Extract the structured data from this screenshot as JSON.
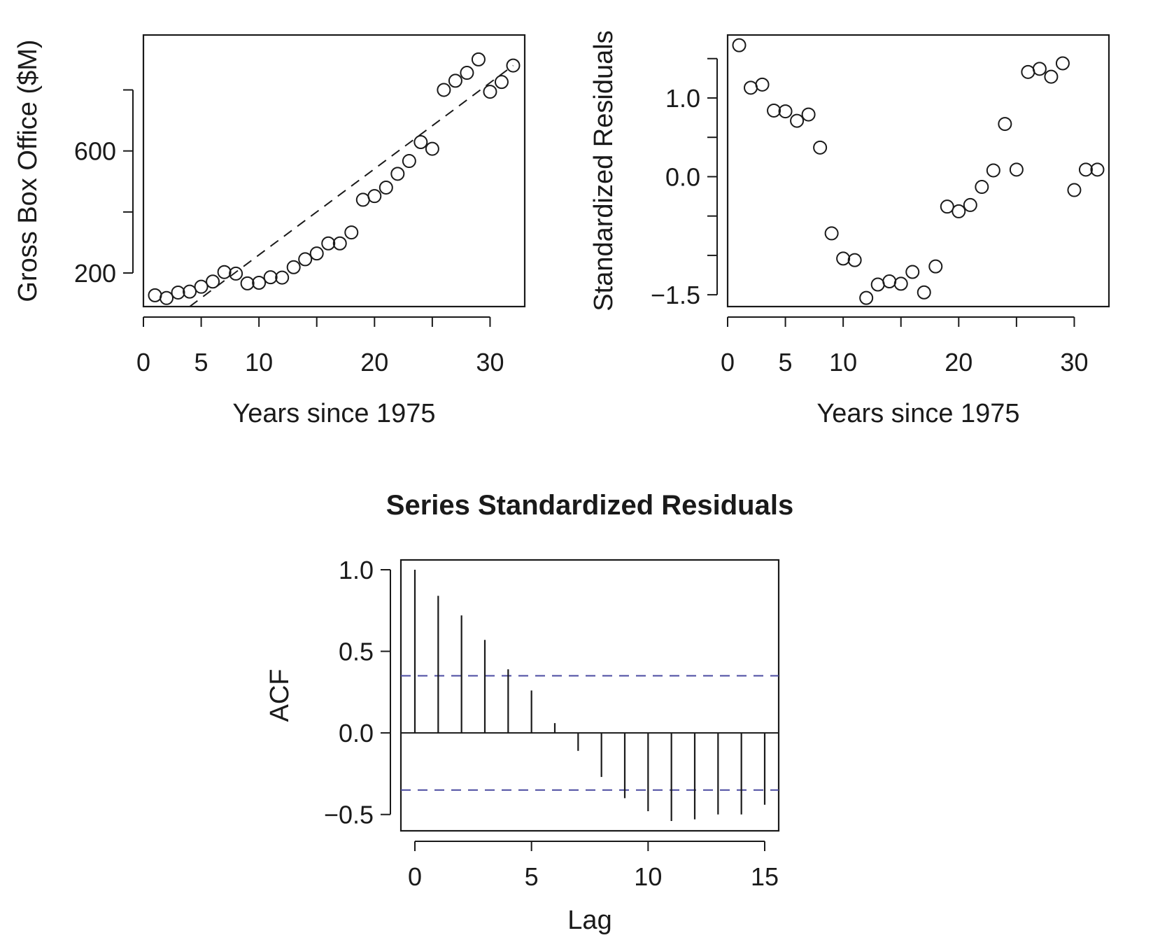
{
  "chart_data": [
    {
      "id": "boxoffice",
      "type": "scatter",
      "title": "",
      "xlabel": "Years since 1975",
      "ylabel": "Gross Box Office ($M)",
      "xlim": [
        0,
        33
      ],
      "ylim": [
        90,
        980
      ],
      "x_ticks": [
        0,
        5,
        10,
        15,
        20,
        25,
        30
      ],
      "x_tick_labels": [
        "0",
        "5",
        "10",
        "",
        "20",
        "",
        "30"
      ],
      "y_ticks": [
        200,
        400,
        600,
        800
      ],
      "y_tick_labels": [
        "200",
        "",
        "600",
        ""
      ],
      "grid": false,
      "x": [
        1,
        2,
        3,
        4,
        5,
        6,
        7,
        8,
        9,
        10,
        11,
        12,
        13,
        14,
        15,
        16,
        17,
        18,
        19,
        20,
        21,
        22,
        23,
        24,
        25,
        26,
        27,
        28,
        29,
        30,
        31,
        32
      ],
      "y": [
        127,
        118,
        136,
        139,
        155,
        172,
        203,
        198,
        166,
        168,
        186,
        185,
        219,
        245,
        264,
        297,
        297,
        333,
        440,
        452,
        480,
        525,
        567,
        629,
        607,
        800,
        830,
        856,
        900,
        794,
        826,
        880
      ],
      "fit_line": {
        "x": [
          4,
          32
        ],
        "y": [
          90,
          880
        ]
      }
    },
    {
      "id": "residuals",
      "type": "scatter",
      "title": "",
      "xlabel": "Years since 1975",
      "ylabel": "Standardized Residuals",
      "xlim": [
        0,
        33
      ],
      "ylim": [
        -1.65,
        1.8
      ],
      "x_ticks": [
        0,
        5,
        10,
        15,
        20,
        25,
        30
      ],
      "x_tick_labels": [
        "0",
        "5",
        "10",
        "",
        "20",
        "",
        "30"
      ],
      "y_ticks": [
        -1.5,
        -1.0,
        -0.5,
        0.0,
        0.5,
        1.0,
        1.5
      ],
      "y_tick_labels": [
        "−1.5",
        "",
        "",
        "0.0",
        "",
        "1.0",
        ""
      ],
      "grid": false,
      "x": [
        1,
        2,
        3,
        4,
        5,
        6,
        7,
        8,
        9,
        10,
        11,
        12,
        13,
        14,
        15,
        16,
        17,
        18,
        19,
        20,
        21,
        22,
        23,
        24,
        25,
        26,
        27,
        28,
        29,
        30,
        31,
        32
      ],
      "y": [
        1.67,
        1.13,
        1.17,
        0.84,
        0.83,
        0.71,
        0.79,
        0.37,
        -0.72,
        -1.04,
        -1.06,
        -1.54,
        -1.37,
        -1.33,
        -1.36,
        -1.21,
        -1.47,
        -1.14,
        -0.38,
        -0.44,
        -0.36,
        -0.13,
        0.08,
        0.67,
        0.09,
        1.33,
        1.37,
        1.27,
        1.44,
        -0.17,
        0.09,
        0.09
      ]
    },
    {
      "id": "acf",
      "type": "bar",
      "title": "Series Standardized Residuals",
      "xlabel": "Lag",
      "ylabel": "ACF",
      "xlim": [
        -0.6,
        15.6
      ],
      "ylim": [
        -0.6,
        1.06
      ],
      "x_ticks": [
        0,
        5,
        10,
        15
      ],
      "x_tick_labels": [
        "0",
        "5",
        "10",
        "15"
      ],
      "y_ticks": [
        -0.5,
        0.0,
        0.5,
        1.0
      ],
      "y_tick_labels": [
        "−0.5",
        "0.0",
        "0.5",
        "1.0"
      ],
      "grid": false,
      "lags": [
        0,
        1,
        2,
        3,
        4,
        5,
        6,
        7,
        8,
        9,
        10,
        11,
        12,
        13,
        14,
        15
      ],
      "values": [
        1.0,
        0.84,
        0.72,
        0.57,
        0.39,
        0.26,
        0.06,
        -0.11,
        -0.27,
        -0.4,
        -0.48,
        -0.54,
        -0.53,
        -0.5,
        -0.5,
        -0.44
      ],
      "confidence_bound": 0.35,
      "confidence_color": "#4a4aa0"
    }
  ]
}
